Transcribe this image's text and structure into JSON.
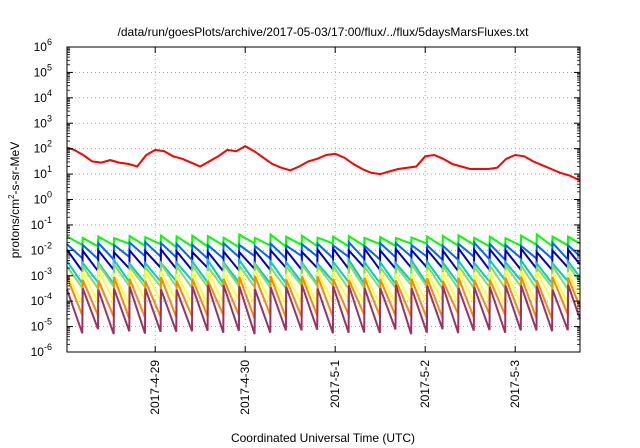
{
  "chart_data": {
    "type": "line",
    "title": "/data/run/goesPlots/archive/2017-05-03/17:00/flux/../flux/5daysMarsFluxes.txt",
    "xlabel": "Coordinated Universal Time (UTC)",
    "ylabel": {
      "pre": "protons/cm",
      "sup": "2",
      "post": "-s-sr-MeV"
    },
    "yscale": "log",
    "ylim_exp": [
      -6,
      6
    ],
    "yticks": [
      {
        "base": "10",
        "exp": "-6"
      },
      {
        "base": "10",
        "exp": "-5"
      },
      {
        "base": "10",
        "exp": "-4"
      },
      {
        "base": "10",
        "exp": "-3"
      },
      {
        "base": "10",
        "exp": "-2"
      },
      {
        "base": "10",
        "exp": "-1"
      },
      {
        "base": "10",
        "exp": "0"
      },
      {
        "base": "10",
        "exp": "1"
      },
      {
        "base": "10",
        "exp": "2"
      },
      {
        "base": "10",
        "exp": "3"
      },
      {
        "base": "10",
        "exp": "4"
      },
      {
        "base": "10",
        "exp": "5"
      },
      {
        "base": "10",
        "exp": "6"
      }
    ],
    "xlim_days": [
      -0.98,
      4.72
    ],
    "xticks": [
      {
        "label": "2017-4-29",
        "day": 0
      },
      {
        "label": "2017-4-30",
        "day": 1
      },
      {
        "label": "2017-5-1",
        "day": 2
      },
      {
        "label": "2017-5-2",
        "day": 3
      },
      {
        "label": "2017-5-3",
        "day": 4
      }
    ],
    "grid": true,
    "sawtooth_period_days": 0.174,
    "series": [
      {
        "color": "#ff0000",
        "values": [
          [
            -0.98,
            2.05
          ],
          [
            -0.9,
            1.95
          ],
          [
            -0.8,
            1.75
          ],
          [
            -0.7,
            1.5
          ],
          [
            -0.6,
            1.45
          ],
          [
            -0.5,
            1.55
          ],
          [
            -0.4,
            1.45
          ],
          [
            -0.3,
            1.4
          ],
          [
            -0.2,
            1.3
          ],
          [
            -0.1,
            1.75
          ],
          [
            0.0,
            1.95
          ],
          [
            0.1,
            1.9
          ],
          [
            0.2,
            1.7
          ],
          [
            0.3,
            1.6
          ],
          [
            0.4,
            1.45
          ],
          [
            0.5,
            1.3
          ],
          [
            0.6,
            1.5
          ],
          [
            0.7,
            1.7
          ],
          [
            0.8,
            1.95
          ],
          [
            0.9,
            1.9
          ],
          [
            1.0,
            2.1
          ],
          [
            1.1,
            1.9
          ],
          [
            1.2,
            1.65
          ],
          [
            1.3,
            1.4
          ],
          [
            1.4,
            1.25
          ],
          [
            1.5,
            1.15
          ],
          [
            1.6,
            1.3
          ],
          [
            1.7,
            1.5
          ],
          [
            1.8,
            1.6
          ],
          [
            1.9,
            1.75
          ],
          [
            2.0,
            1.8
          ],
          [
            2.1,
            1.65
          ],
          [
            2.2,
            1.4
          ],
          [
            2.3,
            1.2
          ],
          [
            2.4,
            1.05
          ],
          [
            2.5,
            1.0
          ],
          [
            2.6,
            1.1
          ],
          [
            2.7,
            1.2
          ],
          [
            2.8,
            1.25
          ],
          [
            2.9,
            1.3
          ],
          [
            3.0,
            1.7
          ],
          [
            3.1,
            1.75
          ],
          [
            3.2,
            1.6
          ],
          [
            3.3,
            1.4
          ],
          [
            3.4,
            1.3
          ],
          [
            3.5,
            1.2
          ],
          [
            3.6,
            1.2
          ],
          [
            3.7,
            1.2
          ],
          [
            3.8,
            1.25
          ],
          [
            3.9,
            1.6
          ],
          [
            4.0,
            1.75
          ],
          [
            4.1,
            1.7
          ],
          [
            4.2,
            1.5
          ],
          [
            4.3,
            1.35
          ],
          [
            4.4,
            1.2
          ],
          [
            4.5,
            1.05
          ],
          [
            4.6,
            0.95
          ],
          [
            4.72,
            0.75
          ]
        ]
      },
      {
        "color": "#00ff00",
        "high": -1.45,
        "low": -1.8,
        "jitter": 0.08
      },
      {
        "color": "#0066ff",
        "high": -1.75,
        "low": -2.3,
        "jitter": 0.08
      },
      {
        "color": "#0000bb",
        "high": -2.0,
        "low": -2.75,
        "jitter": 0.08
      },
      {
        "color": "#00cccc",
        "high": -2.45,
        "low": -3.25,
        "jitter": 0.08
      },
      {
        "color": "#88dd55",
        "high": -2.6,
        "low": -3.45,
        "jitter": 0.08
      },
      {
        "color": "#ffff33",
        "high": -2.85,
        "low": -4.05,
        "jitter": 0.09
      },
      {
        "color": "#ff8800",
        "high": -3.1,
        "low": -4.6,
        "jitter": 0.1
      },
      {
        "color": "#993366",
        "high": -3.45,
        "low": -5.2,
        "jitter": 0.1
      }
    ]
  }
}
